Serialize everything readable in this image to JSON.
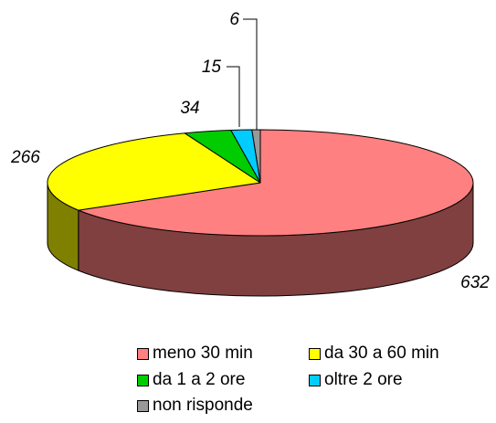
{
  "chart_data": {
    "type": "pie",
    "style": "3d",
    "title": "",
    "categories": [
      "meno 30 min",
      "da 30 a 60 min",
      "da 1 a 2 ore",
      "oltre 2 ore",
      "non risponde"
    ],
    "values": [
      632,
      266,
      34,
      15,
      6
    ],
    "colors": [
      "#FF8080",
      "#FFFF00",
      "#00CC00",
      "#00CCFF",
      "#999999"
    ],
    "side_colors": [
      "#804040",
      "#808000",
      "#006600",
      "#006680",
      "#4d4d4d"
    ],
    "legend": "bottom",
    "data_labels": [
      "632",
      "266",
      "34",
      "15",
      "6"
    ]
  }
}
